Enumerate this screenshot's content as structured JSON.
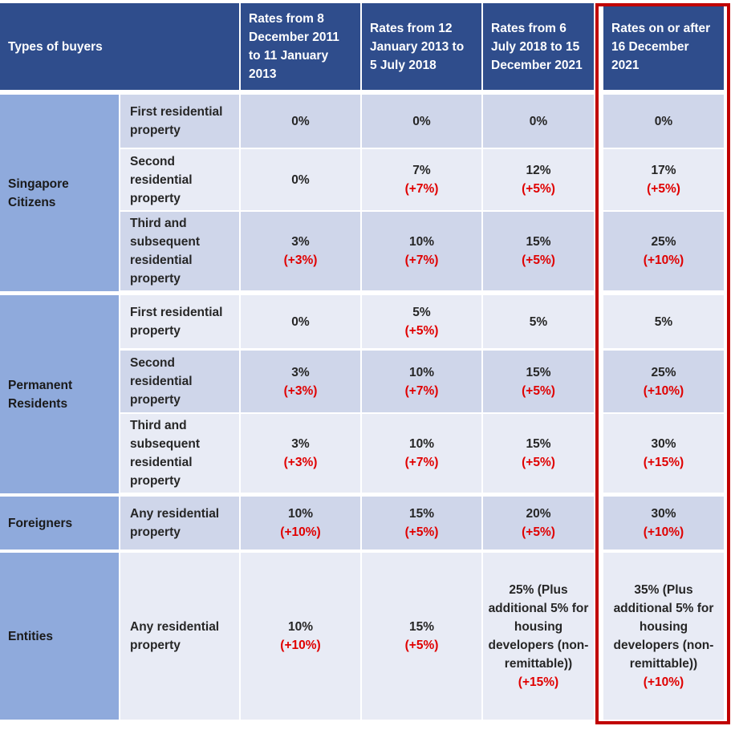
{
  "header": {
    "types_of_buyers": "Types of buyers",
    "col1": "Rates from 8 December 2011 to 11 January 2013",
    "col2": "Rates from 12 January 2013 to 5 July 2018",
    "col3": "Rates from 6 July 2018 to 15 December 2021",
    "col4": "Rates on or after 16 December 2021"
  },
  "groups": {
    "citizens": "Singapore Citizens",
    "pr": "Permanent Residents",
    "foreigners": "Foreigners",
    "entities": "Entities"
  },
  "rows": [
    {
      "sub": "First residential property",
      "cells": [
        {
          "rate": "0%",
          "chg": ""
        },
        {
          "rate": "0%",
          "chg": ""
        },
        {
          "rate": "0%",
          "chg": ""
        },
        {
          "rate": "0%",
          "chg": ""
        }
      ]
    },
    {
      "sub": "Second residential property",
      "cells": [
        {
          "rate": "0%",
          "chg": ""
        },
        {
          "rate": "7%",
          "chg": "(+7%)"
        },
        {
          "rate": "12%",
          "chg": "(+5%)"
        },
        {
          "rate": "17%",
          "chg": "(+5%)"
        }
      ]
    },
    {
      "sub": "Third and subsequent residential property",
      "cells": [
        {
          "rate": "3%",
          "chg": "(+3%)"
        },
        {
          "rate": "10%",
          "chg": "(+7%)"
        },
        {
          "rate": "15%",
          "chg": "(+5%)"
        },
        {
          "rate": "25%",
          "chg": "(+10%)"
        }
      ]
    },
    {
      "sub": "First residential property",
      "cells": [
        {
          "rate": "0%",
          "chg": ""
        },
        {
          "rate": "5%",
          "chg": "(+5%)"
        },
        {
          "rate": "5%",
          "chg": ""
        },
        {
          "rate": "5%",
          "chg": ""
        }
      ]
    },
    {
      "sub": "Second residential property",
      "cells": [
        {
          "rate": "3%",
          "chg": "(+3%)"
        },
        {
          "rate": "10%",
          "chg": "(+7%)"
        },
        {
          "rate": "15%",
          "chg": "(+5%)"
        },
        {
          "rate": "25%",
          "chg": "(+10%)"
        }
      ]
    },
    {
      "sub": "Third and subsequent residential property",
      "cells": [
        {
          "rate": "3%",
          "chg": "(+3%)"
        },
        {
          "rate": "10%",
          "chg": "(+7%)"
        },
        {
          "rate": "15%",
          "chg": "(+5%)"
        },
        {
          "rate": "30%",
          "chg": "(+15%)"
        }
      ]
    },
    {
      "sub": "Any residential property",
      "cells": [
        {
          "rate": "10%",
          "chg": "(+10%)"
        },
        {
          "rate": "15%",
          "chg": "(+5%)"
        },
        {
          "rate": "20%",
          "chg": "(+5%)"
        },
        {
          "rate": "30%",
          "chg": "(+10%)"
        }
      ]
    },
    {
      "sub": "Any residential property",
      "cells": [
        {
          "rate": "10%",
          "chg": "(+10%)"
        },
        {
          "rate": "15%",
          "chg": "(+5%)"
        },
        {
          "rate": "25% (Plus additional 5% for housing developers (non-remittable))",
          "chg": "(+15%)"
        },
        {
          "rate": "35% (Plus additional 5% for housing developers (non-remittable))",
          "chg": "(+10%)"
        }
      ]
    }
  ],
  "colors": {
    "header": "#2f4d8c",
    "group": "#8faadc",
    "row_dark": "#cfd6ea",
    "row_light": "#e8ebf5",
    "change_text": "#e00000",
    "highlight_border": "#c00000"
  }
}
